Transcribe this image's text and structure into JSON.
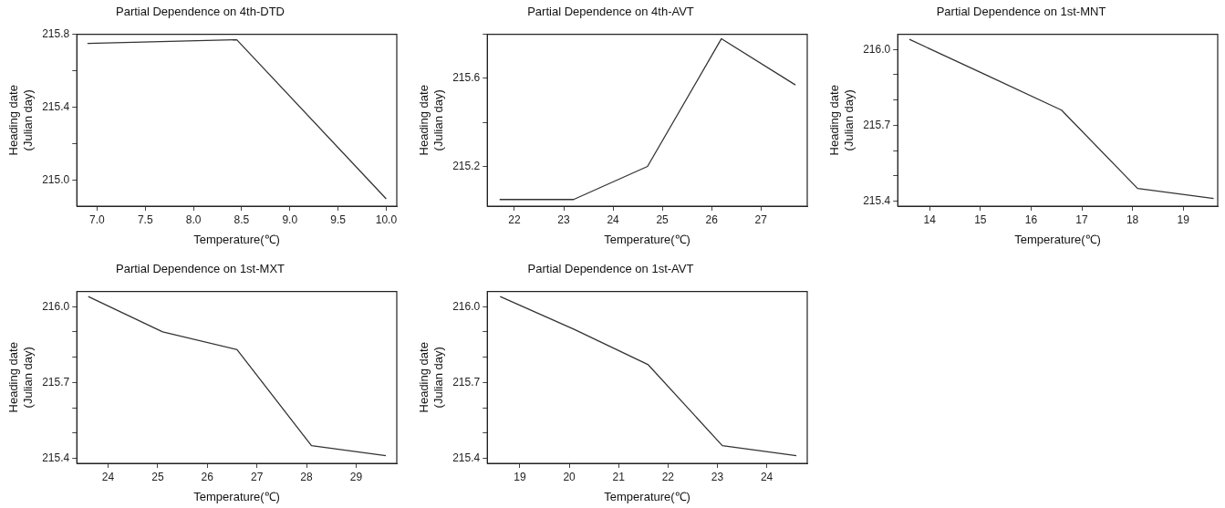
{
  "chart_data": [
    {
      "type": "line",
      "title": "Partial Dependence on 4th-DTD",
      "xlabel": "Temperature(℃)",
      "ylabel": "Heading date\n(Julian day)",
      "x": [
        6.9,
        8.45,
        10.0
      ],
      "values": [
        215.75,
        215.77,
        214.9
      ],
      "color": "#333333",
      "xlim": [
        6.79,
        10.11
      ],
      "xticks": [
        {
          "value": 7,
          "label": "7.0"
        },
        7.5,
        {
          "value": 8,
          "label": "8.0"
        },
        8.5,
        {
          "value": 9,
          "label": "9.0"
        },
        9.5,
        {
          "value": 10,
          "label": "10.0"
        }
      ],
      "ylim": [
        214.86,
        215.8
      ],
      "yticks": [
        {
          "value": 215,
          "label": "215.0"
        },
        {
          "value": 215.2,
          "label": null
        },
        215.4,
        {
          "value": 215.6,
          "label": null
        },
        215.8
      ],
      "grid": false,
      "legend": false,
      "marker": "none",
      "line_style": "solid"
    },
    {
      "type": "line",
      "title": "Partial Dependence on 4th-AVT",
      "xlabel": "Temperature(℃)",
      "ylabel": "Heading date\n(Julian day)",
      "x": [
        21.7,
        23.2,
        24.7,
        26.2,
        27.7
      ],
      "values": [
        215.05,
        215.05,
        215.2,
        215.78,
        215.57
      ],
      "color": "#333333",
      "xlim": [
        21.45,
        27.94
      ],
      "xticks": [
        22,
        23,
        24,
        25,
        26,
        27
      ],
      "ylim": [
        215.02,
        215.8
      ],
      "yticks": [
        215.2,
        {
          "value": 215.4,
          "label": null
        },
        215.6,
        {
          "value": 215.8,
          "label": null
        }
      ],
      "grid": false,
      "legend": false,
      "marker": "none",
      "line_style": "solid"
    },
    {
      "type": "line",
      "title": "Partial Dependence on 1st-MNT",
      "xlabel": "Temperature(℃)",
      "ylabel": "Heading date\n(Julian day)",
      "x": [
        13.6,
        15.1,
        16.6,
        18.1,
        19.6
      ],
      "values": [
        216.04,
        215.9,
        215.76,
        215.45,
        215.41
      ],
      "color": "#333333",
      "xlim": [
        13.37,
        19.68
      ],
      "xticks": [
        14,
        15,
        16,
        17,
        18,
        19
      ],
      "ylim": [
        215.38,
        216.06
      ],
      "yticks": [
        215.4,
        {
          "value": 215.5,
          "label": null
        },
        {
          "value": 215.6,
          "label": null
        },
        215.7,
        {
          "value": 215.8,
          "label": null
        },
        {
          "value": 215.9,
          "label": null
        },
        {
          "value": 216,
          "label": "216.0"
        }
      ],
      "grid": false,
      "legend": false,
      "marker": "none",
      "line_style": "solid"
    },
    {
      "type": "line",
      "title": "Partial Dependence on 1st-MXT",
      "xlabel": "Temperature(℃)",
      "ylabel": "Heading date\n(Julian day)",
      "x": [
        23.6,
        25.1,
        26.6,
        28.1,
        29.6
      ],
      "values": [
        216.04,
        215.9,
        215.83,
        215.45,
        215.41
      ],
      "color": "#333333",
      "xlim": [
        23.37,
        29.82
      ],
      "xticks": [
        24,
        25,
        26,
        27,
        28,
        29
      ],
      "ylim": [
        215.38,
        216.06
      ],
      "yticks": [
        215.4,
        {
          "value": 215.5,
          "label": null
        },
        {
          "value": 215.6,
          "label": null
        },
        215.7,
        {
          "value": 215.8,
          "label": null
        },
        {
          "value": 215.9,
          "label": null
        },
        {
          "value": 216,
          "label": "216.0"
        }
      ],
      "grid": false,
      "legend": false,
      "marker": "none",
      "line_style": "solid"
    },
    {
      "type": "line",
      "title": "Partial Dependence on 1st-AVT",
      "xlabel": "Temperature(℃)",
      "ylabel": "Heading date\n(Julian day)",
      "x": [
        18.6,
        20.1,
        21.6,
        23.1,
        24.6
      ],
      "values": [
        216.04,
        215.91,
        215.77,
        215.45,
        215.41
      ],
      "color": "#333333",
      "xlim": [
        18.34,
        24.82
      ],
      "xticks": [
        19,
        20,
        21,
        22,
        23,
        24
      ],
      "ylim": [
        215.38,
        216.06
      ],
      "yticks": [
        215.4,
        {
          "value": 215.5,
          "label": null
        },
        {
          "value": 215.6,
          "label": null
        },
        215.7,
        {
          "value": 215.8,
          "label": null
        },
        {
          "value": 215.9,
          "label": null
        },
        {
          "value": 216,
          "label": "216.0"
        }
      ],
      "grid": false,
      "legend": false,
      "marker": "none",
      "line_style": "solid"
    }
  ]
}
